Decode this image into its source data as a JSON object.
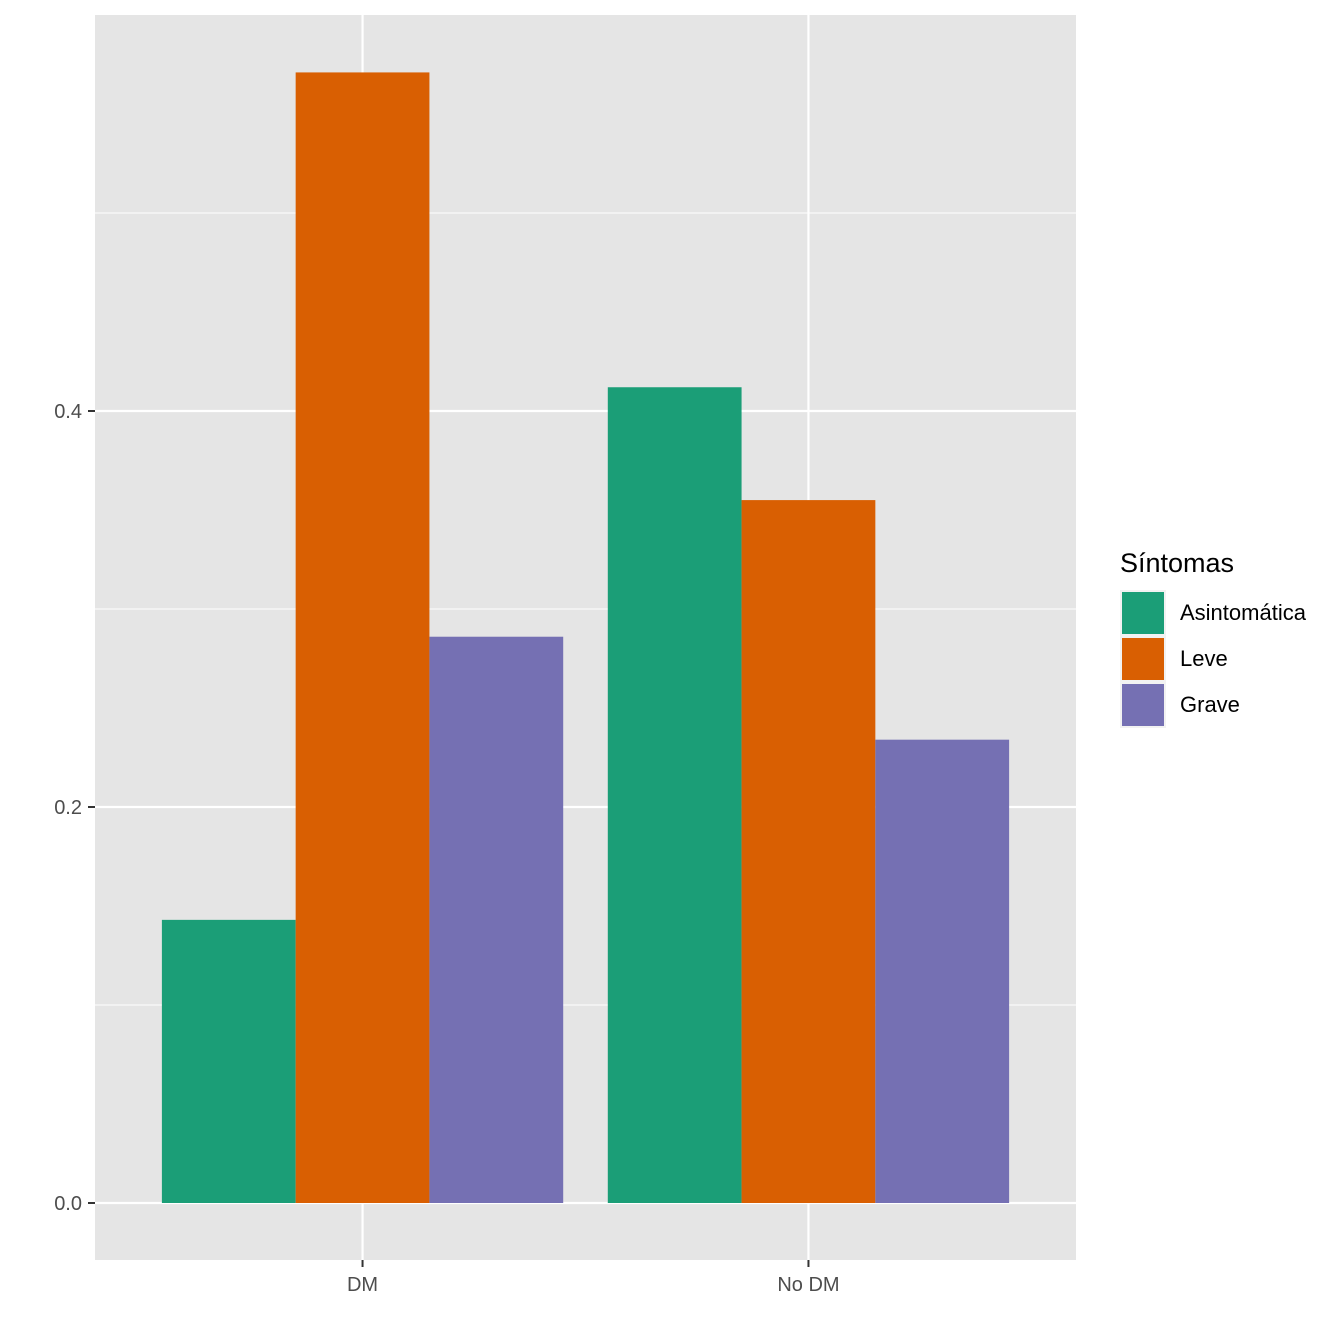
{
  "chart_data": {
    "type": "bar",
    "categories": [
      "DM",
      "No DM"
    ],
    "series": [
      {
        "name": "Asintomática",
        "color": "#1B9E77",
        "values": [
          0.143,
          0.412
        ]
      },
      {
        "name": "Leve",
        "color": "#D95F02",
        "values": [
          0.571,
          0.355
        ]
      },
      {
        "name": "Grave",
        "color": "#7570B3",
        "values": [
          0.286,
          0.234
        ]
      }
    ],
    "y_ticks": [
      {
        "value": 0.0,
        "label": "0.0"
      },
      {
        "value": 0.2,
        "label": "0.2"
      },
      {
        "value": 0.4,
        "label": "0.4"
      }
    ],
    "ylim": [
      -0.0286,
      0.6
    ],
    "title": "",
    "xlabel": "",
    "ylabel": "",
    "legend": {
      "title": "Síntomas",
      "position": "right"
    },
    "grid": true,
    "panel_background": "#E5E5E5",
    "grid_color": "#FFFFFF"
  }
}
